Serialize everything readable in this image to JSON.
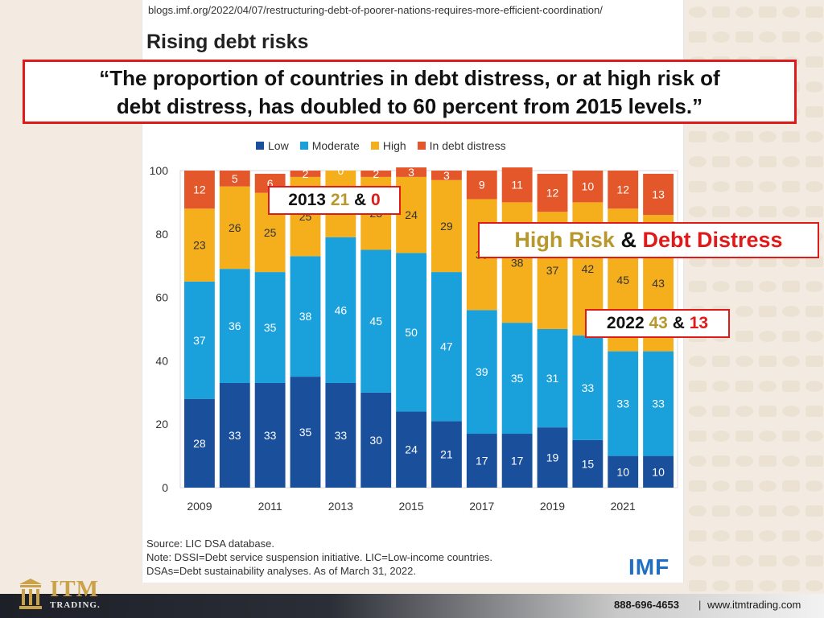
{
  "source_url": "blogs.imf.org/2022/04/07/restructuring-debt-of-poorer-nations-requires-more-efficient-coordination/",
  "blog_title": "Rising debt risks",
  "quote": {
    "line1": "“The proportion of countries in debt distress, or at high risk of",
    "line2": "debt distress, has doubled to 60 percent from 2015 levels.”"
  },
  "callouts": {
    "c2013": {
      "year": "2013",
      "high": "21",
      "amp": "&",
      "distress": "0"
    },
    "risk_label": {
      "high": "High Risk",
      "amp": "&",
      "distress": "Debt Distress"
    },
    "c2022": {
      "year": "2022",
      "high": "43",
      "amp": "&",
      "distress": "13"
    }
  },
  "notes": {
    "source": "Source: LIC DSA database.",
    "note": "Note: DSSI=Debt service suspension initiative. LIC=Low-income countries.",
    "dsas": "DSAs=Debt sustainability analyses. As of March 31, 2022."
  },
  "imf_logo": "IMF",
  "footer": {
    "phone": "888-696-4653",
    "separator": "|",
    "site": "www.itmtrading.com",
    "logo_itm": "ITM",
    "logo_trading": "TRADING."
  },
  "colors": {
    "low": "#1a4f9c",
    "moderate": "#1aa0db",
    "high": "#f5ae1c",
    "distress": "#e4572a",
    "callout_border": "#e01919"
  },
  "chart_data": {
    "type": "bar",
    "stacked": true,
    "categories": [
      "2009",
      "2010",
      "2011",
      "2012",
      "2013",
      "2014",
      "2015",
      "2016",
      "2017",
      "2018",
      "2019",
      "2020",
      "2021",
      "2022"
    ],
    "x_tick_labels": [
      "2009",
      "2011",
      "2013",
      "2015",
      "2017",
      "2019",
      "2021"
    ],
    "series": [
      {
        "name": "Low",
        "values": [
          28,
          33,
          33,
          35,
          33,
          30,
          24,
          21,
          17,
          17,
          19,
          15,
          10,
          10
        ]
      },
      {
        "name": "Moderate",
        "values": [
          37,
          36,
          35,
          38,
          46,
          45,
          50,
          47,
          39,
          35,
          31,
          33,
          33,
          33
        ]
      },
      {
        "name": "High",
        "values": [
          23,
          26,
          25,
          25,
          21,
          23,
          24,
          29,
          35,
          38,
          37,
          42,
          45,
          43
        ]
      },
      {
        "name": "In debt distress",
        "values": [
          12,
          5,
          6,
          2,
          0,
          2,
          3,
          3,
          9,
          11,
          12,
          10,
          12,
          13
        ]
      }
    ],
    "ylim": [
      0,
      100
    ],
    "y_ticks": [
      0,
      20,
      40,
      60,
      80,
      100
    ],
    "legend_position": "top",
    "grid": false
  }
}
